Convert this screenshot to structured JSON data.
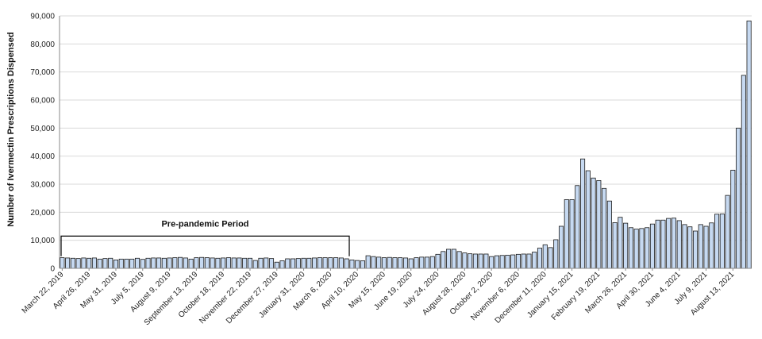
{
  "chart_data": {
    "type": "bar",
    "ylabel": "Number of Ivermectin Prescriptions Dispensed",
    "xlabel": "",
    "ylim": [
      0,
      90000
    ],
    "y_ticks": [
      "0",
      "10,000",
      "20,000",
      "30,000",
      "40,000",
      "50,000",
      "60,000",
      "70,000",
      "80,000",
      "90,000"
    ],
    "x_tick_labels": [
      "March 22, 2019",
      "April 26, 2019",
      "May 31, 2019",
      "July 5, 2019",
      "August 9, 2019",
      "September 13, 2019",
      "October 18, 2019",
      "November 22, 2019",
      "December 27, 2019",
      "January 31, 2020",
      "March 6, 2020",
      "April 10, 2020",
      "May 15, 2020",
      "June 19, 2020",
      "July 24, 2020",
      "August 28, 2020",
      "October 2, 2020",
      "November 6, 2020",
      "December 11, 2020",
      "January 15, 2021",
      "February 19, 2021",
      "March 26, 2021",
      "April 30, 2021",
      "June 4, 2021",
      "July 9, 2021",
      "August 13, 2021"
    ],
    "label_every": 5,
    "grid": true,
    "bar_fill": "#c6d9f1",
    "bar_stroke": "#1a1a1a",
    "values": [
      3800,
      3700,
      3600,
      3500,
      3700,
      3600,
      3700,
      3300,
      3500,
      3600,
      3000,
      3300,
      3300,
      3300,
      3600,
      3200,
      3600,
      3700,
      3700,
      3600,
      3700,
      3800,
      3900,
      3700,
      3300,
      3800,
      3900,
      3800,
      3700,
      3600,
      3700,
      3800,
      3700,
      3700,
      3600,
      3600,
      2800,
      3600,
      3700,
      3500,
      2200,
      2700,
      3400,
      3400,
      3500,
      3600,
      3600,
      3700,
      3800,
      3800,
      3800,
      3800,
      3700,
      3400,
      3000,
      2800,
      2700,
      4500,
      4200,
      4000,
      3800,
      3900,
      3800,
      3800,
      3700,
      3400,
      3800,
      4000,
      4000,
      4200,
      5000,
      6000,
      6800,
      6800,
      6000,
      5500,
      5200,
      5100,
      5100,
      5100,
      4200,
      4500,
      4600,
      4700,
      4800,
      5000,
      5100,
      5100,
      5800,
      7200,
      8400,
      7400,
      10200,
      15000,
      24500,
      24500,
      29500,
      39000,
      34800,
      32200,
      31300,
      28500,
      24000,
      16300,
      18200,
      16100,
      14500,
      14000,
      14200,
      14500,
      15800,
      17200,
      17200,
      17800,
      17900,
      17000,
      15600,
      14800,
      13300,
      15600,
      15000,
      16200,
      19300,
      19400,
      26000,
      35000,
      50000,
      68800,
      88200
    ],
    "annotations": [
      {
        "text": "Pre-pandemic Period",
        "type": "bracket",
        "from_index": 0,
        "to_index": 53,
        "y": 11500
      }
    ]
  }
}
